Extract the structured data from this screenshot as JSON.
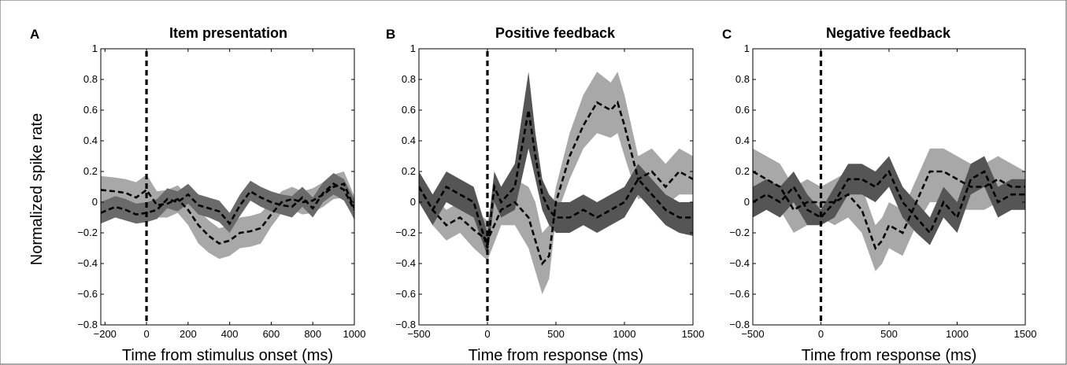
{
  "chart_data": [
    {
      "type": "area",
      "panel_letter": "A",
      "title": "Item presentation",
      "xlabel": "Time from stimulus onset (ms)",
      "ylabel": "Normalized spike rate",
      "xlim": [
        -220,
        1000
      ],
      "ylim": [
        -0.8,
        1
      ],
      "xticks": [
        -200,
        0,
        200,
        400,
        600,
        800,
        1000
      ],
      "yticks": [
        -0.8,
        -0.6,
        -0.4,
        -0.2,
        0,
        0.2,
        0.4,
        0.6,
        0.8,
        1
      ],
      "ytick_labels": [
        "−0.8",
        "−0.6",
        "−0.4",
        "−0.2",
        "0",
        "0.2",
        "0.4",
        "0.6",
        "0.8",
        "1"
      ],
      "xtick_labels": [
        "−200",
        "0",
        "200",
        "400",
        "600",
        "800",
        "1000"
      ],
      "vline_x": 0,
      "series": [
        {
          "color": "#a8a8a8",
          "x": [
            -220,
            -150,
            -100,
            -50,
            0,
            50,
            100,
            150,
            200,
            250,
            300,
            350,
            400,
            450,
            500,
            550,
            600,
            650,
            700,
            750,
            800,
            850,
            900,
            950,
            1000
          ],
          "mean": [
            0.08,
            0.07,
            0.06,
            0.03,
            0.08,
            -0.02,
            -0.01,
            0.02,
            -0.05,
            -0.15,
            -0.22,
            -0.27,
            -0.25,
            -0.2,
            -0.19,
            -0.17,
            -0.08,
            0.0,
            0.02,
            0.0,
            0.01,
            0.05,
            0.1,
            0.12,
            -0.04
          ],
          "lower": [
            -0.02,
            -0.03,
            -0.04,
            -0.06,
            -0.02,
            -0.1,
            -0.1,
            -0.07,
            -0.15,
            -0.27,
            -0.33,
            -0.37,
            -0.35,
            -0.3,
            -0.29,
            -0.27,
            -0.16,
            -0.07,
            -0.05,
            -0.08,
            -0.07,
            -0.03,
            0.02,
            0.03,
            -0.12
          ],
          "upper": [
            0.17,
            0.16,
            0.15,
            0.13,
            0.18,
            0.07,
            0.08,
            0.11,
            0.04,
            -0.05,
            -0.12,
            -0.17,
            -0.15,
            -0.1,
            -0.09,
            -0.07,
            0.0,
            0.07,
            0.1,
            0.07,
            0.09,
            0.13,
            0.18,
            0.2,
            0.04
          ]
        },
        {
          "color": "#6a6a6a",
          "x": [
            -220,
            -150,
            -100,
            -50,
            0,
            50,
            100,
            150,
            200,
            250,
            300,
            350,
            400,
            450,
            500,
            550,
            600,
            650,
            700,
            750,
            800,
            850,
            900,
            950,
            1000
          ],
          "mean": [
            -0.07,
            -0.03,
            -0.05,
            -0.08,
            -0.07,
            -0.05,
            0.02,
            0.0,
            0.05,
            -0.02,
            -0.04,
            -0.06,
            -0.14,
            -0.02,
            0.07,
            0.03,
            0.0,
            -0.02,
            -0.03,
            0.03,
            -0.04,
            0.06,
            0.12,
            0.08,
            -0.05
          ],
          "lower": [
            -0.14,
            -0.1,
            -0.12,
            -0.14,
            -0.13,
            -0.11,
            -0.04,
            -0.06,
            -0.01,
            -0.08,
            -0.1,
            -0.13,
            -0.2,
            -0.09,
            0.01,
            -0.03,
            -0.06,
            -0.08,
            -0.1,
            -0.03,
            -0.1,
            0.0,
            0.05,
            0.01,
            -0.11
          ],
          "upper": [
            0.0,
            0.04,
            0.02,
            -0.01,
            0.0,
            0.02,
            0.09,
            0.07,
            0.12,
            0.05,
            0.03,
            0.01,
            -0.07,
            0.05,
            0.14,
            0.1,
            0.07,
            0.05,
            0.04,
            0.1,
            0.03,
            0.13,
            0.19,
            0.15,
            0.02
          ]
        }
      ]
    },
    {
      "type": "area",
      "panel_letter": "B",
      "title": "Positive feedback",
      "xlabel": "Time from response (ms)",
      "ylabel": "",
      "xlim": [
        -500,
        1500
      ],
      "ylim": [
        -0.8,
        1
      ],
      "xticks": [
        -500,
        0,
        500,
        1000,
        1500
      ],
      "yticks": [
        -0.8,
        -0.6,
        -0.4,
        -0.2,
        0,
        0.2,
        0.4,
        0.6,
        0.8,
        1
      ],
      "ytick_labels": [
        "−0.8",
        "−0.6",
        "−0.4",
        "−0.2",
        "0",
        "0.2",
        "0.4",
        "0.6",
        "0.8",
        "1"
      ],
      "xtick_labels": [
        "−500",
        "0",
        "500",
        "1000",
        "1500"
      ],
      "vline_x": 0,
      "series": [
        {
          "color": "#a8a8a8",
          "x": [
            -500,
            -400,
            -300,
            -200,
            -100,
            0,
            100,
            200,
            300,
            350,
            400,
            450,
            500,
            600,
            700,
            800,
            900,
            950,
            1000,
            1100,
            1200,
            1300,
            1400,
            1500
          ],
          "mean": [
            0.1,
            -0.05,
            -0.15,
            -0.1,
            -0.18,
            -0.25,
            -0.05,
            0.0,
            -0.1,
            -0.25,
            -0.4,
            -0.35,
            0.0,
            0.3,
            0.5,
            0.65,
            0.6,
            0.65,
            0.5,
            0.15,
            0.2,
            0.1,
            0.2,
            0.15
          ],
          "lower": [
            0.0,
            -0.15,
            -0.25,
            -0.2,
            -0.3,
            -0.38,
            -0.15,
            -0.15,
            -0.3,
            -0.45,
            -0.6,
            -0.5,
            -0.1,
            0.15,
            0.35,
            0.45,
            0.42,
            0.45,
            0.3,
            0.02,
            0.05,
            -0.02,
            0.05,
            0.05
          ],
          "upper": [
            0.2,
            0.05,
            -0.05,
            0.0,
            -0.05,
            -0.12,
            0.1,
            0.15,
            0.1,
            0.0,
            -0.2,
            -0.15,
            0.1,
            0.45,
            0.7,
            0.85,
            0.78,
            0.85,
            0.7,
            0.3,
            0.35,
            0.25,
            0.35,
            0.3
          ]
        },
        {
          "color": "#555555",
          "x": [
            -500,
            -400,
            -300,
            -200,
            -100,
            0,
            50,
            100,
            200,
            300,
            350,
            400,
            450,
            500,
            600,
            700,
            800,
            900,
            1000,
            1100,
            1200,
            1300,
            1400,
            1500
          ],
          "mean": [
            0.1,
            -0.05,
            0.1,
            0.05,
            0.0,
            -0.3,
            0.1,
            0.0,
            0.1,
            0.6,
            0.3,
            0.05,
            -0.05,
            -0.1,
            -0.1,
            -0.05,
            -0.1,
            -0.05,
            0.0,
            0.15,
            0.05,
            -0.05,
            -0.1,
            -0.1
          ],
          "lower": [
            0.0,
            -0.15,
            0.0,
            -0.05,
            -0.1,
            -0.35,
            0.0,
            -0.1,
            -0.05,
            0.35,
            0.15,
            -0.05,
            -0.15,
            -0.2,
            -0.2,
            -0.15,
            -0.2,
            -0.15,
            -0.1,
            0.05,
            -0.05,
            -0.15,
            -0.2,
            -0.22
          ],
          "upper": [
            0.2,
            0.05,
            0.2,
            0.15,
            0.1,
            -0.2,
            0.2,
            0.1,
            0.25,
            0.85,
            0.45,
            0.15,
            0.05,
            0.0,
            0.0,
            0.05,
            0.0,
            0.05,
            0.1,
            0.25,
            0.15,
            0.05,
            0.0,
            0.0
          ]
        }
      ]
    },
    {
      "type": "area",
      "panel_letter": "C",
      "title": "Negative feedback",
      "xlabel": "Time from response (ms)",
      "ylabel": "",
      "xlim": [
        -500,
        1500
      ],
      "ylim": [
        -0.8,
        1
      ],
      "xticks": [
        -500,
        0,
        500,
        1000,
        1500
      ],
      "yticks": [
        -0.8,
        -0.6,
        -0.4,
        -0.2,
        0,
        0.2,
        0.4,
        0.6,
        0.8,
        1
      ],
      "ytick_labels": [
        "−0.8",
        "−0.6",
        "−0.4",
        "−0.2",
        "0",
        "0.2",
        "0.4",
        "0.6",
        "0.8",
        "1"
      ],
      "xtick_labels": [
        "−500",
        "0",
        "500",
        "1000",
        "1500"
      ],
      "vline_x": 0,
      "series": [
        {
          "color": "#a8a8a8",
          "x": [
            -500,
            -400,
            -300,
            -200,
            -100,
            0,
            100,
            200,
            300,
            400,
            450,
            500,
            600,
            700,
            800,
            900,
            1000,
            1100,
            1200,
            1300,
            1400,
            1500
          ],
          "mean": [
            0.2,
            0.15,
            0.1,
            -0.05,
            0.0,
            0.0,
            0.0,
            0.05,
            -0.05,
            -0.3,
            -0.25,
            -0.15,
            -0.2,
            0.0,
            0.2,
            0.2,
            0.15,
            0.1,
            0.1,
            0.15,
            0.1,
            0.1
          ],
          "lower": [
            0.05,
            0.0,
            -0.05,
            -0.2,
            -0.15,
            -0.1,
            -0.15,
            -0.1,
            -0.2,
            -0.45,
            -0.4,
            -0.3,
            -0.35,
            -0.15,
            0.0,
            0.0,
            -0.05,
            -0.05,
            -0.05,
            0.0,
            -0.05,
            -0.05
          ],
          "upper": [
            0.35,
            0.3,
            0.25,
            0.1,
            0.15,
            0.1,
            0.15,
            0.2,
            0.1,
            -0.15,
            -0.1,
            0.0,
            -0.05,
            0.15,
            0.35,
            0.35,
            0.3,
            0.25,
            0.25,
            0.3,
            0.25,
            0.2
          ]
        },
        {
          "color": "#555555",
          "x": [
            -500,
            -400,
            -300,
            -200,
            -100,
            0,
            100,
            200,
            300,
            400,
            500,
            600,
            700,
            800,
            900,
            1000,
            1100,
            1200,
            1300,
            1400,
            1500
          ],
          "mean": [
            0.0,
            0.05,
            0.0,
            0.1,
            -0.05,
            -0.1,
            0.0,
            0.15,
            0.15,
            0.1,
            0.2,
            0.0,
            -0.1,
            -0.2,
            0.0,
            -0.1,
            0.15,
            0.2,
            0.0,
            0.05,
            0.05
          ],
          "lower": [
            -0.1,
            -0.05,
            -0.1,
            0.0,
            -0.15,
            -0.15,
            -0.1,
            0.05,
            0.05,
            0.0,
            0.1,
            -0.1,
            -0.2,
            -0.28,
            -0.1,
            -0.2,
            0.05,
            0.1,
            -0.1,
            -0.05,
            -0.05
          ],
          "upper": [
            0.1,
            0.15,
            0.1,
            0.2,
            0.05,
            -0.05,
            0.1,
            0.25,
            0.25,
            0.2,
            0.3,
            0.1,
            0.0,
            -0.1,
            0.1,
            0.0,
            0.25,
            0.3,
            0.1,
            0.15,
            0.15
          ]
        }
      ]
    }
  ]
}
